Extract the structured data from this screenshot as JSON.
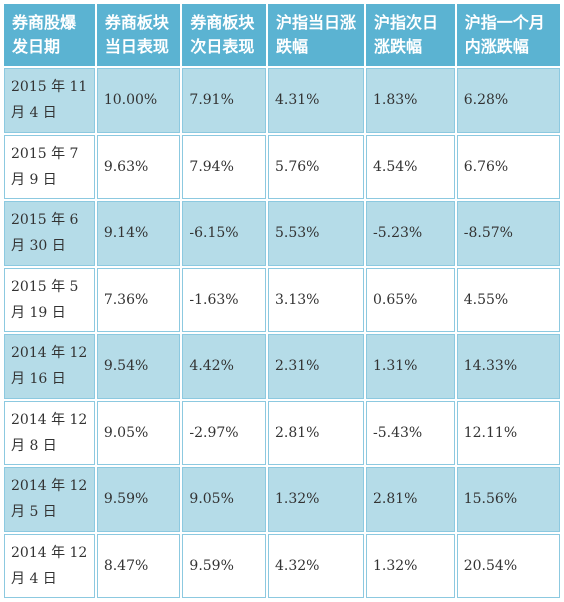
{
  "table": {
    "headers": [
      "券商股爆发日期",
      "券商板块当日表现",
      "券商板块次日表现",
      "沪指当日涨跌幅",
      "沪指次日涨跌幅",
      "沪指一个月内涨跌幅"
    ],
    "rows": [
      [
        "2015 年 11 月 4 日",
        "10.00%",
        "7.91%",
        "4.31%",
        "1.83%",
        "6.28%"
      ],
      [
        "2015 年 7 月 9 日",
        "9.63%",
        "7.94%",
        "5.76%",
        "4.54%",
        "6.76%"
      ],
      [
        "2015 年 6 月 30 日",
        "9.14%",
        "-6.15%",
        "5.53%",
        "-5.23%",
        "-8.57%"
      ],
      [
        "2015 年 5 月 19 日",
        "7.36%",
        "-1.63%",
        "3.13%",
        "0.65%",
        "4.55%"
      ],
      [
        "2014 年 12 月 16 日",
        "9.54%",
        "4.42%",
        "2.31%",
        "1.31%",
        "14.33%"
      ],
      [
        "2014 年 12 月 8 日",
        "9.05%",
        "-2.97%",
        "2.81%",
        "-5.43%",
        "12.11%"
      ],
      [
        "2014 年 12 月 5 日",
        "9.59%",
        "9.05%",
        "1.32%",
        "2.81%",
        "15.56%"
      ],
      [
        "2014 年 12 月 4 日",
        "8.47%",
        "9.59%",
        "4.32%",
        "1.32%",
        "20.54%"
      ]
    ]
  },
  "colors": {
    "header_bg": "#5bb3d2",
    "shaded_row_bg": "#b5dce8",
    "plain_row_bg": "#ffffff",
    "border": "#8cc9e0"
  }
}
